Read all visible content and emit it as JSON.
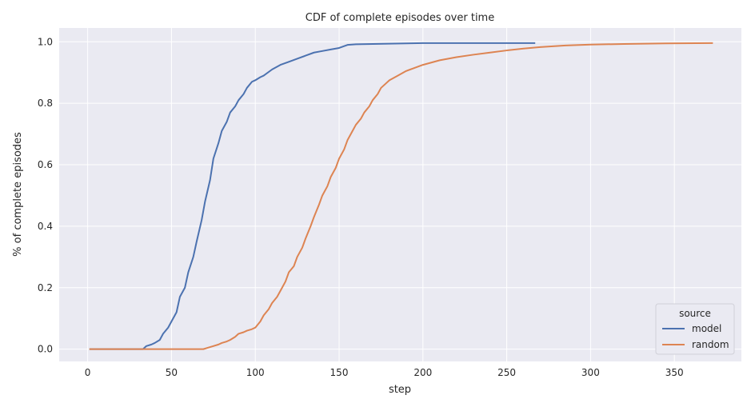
{
  "chart_data": {
    "type": "line",
    "title": "CDF of complete episodes over time",
    "xlabel": "step",
    "ylabel": "% of complete episodes",
    "xlim": [
      -17,
      390
    ],
    "ylim": [
      -0.04,
      1.045
    ],
    "xticks": [
      0,
      50,
      100,
      150,
      200,
      250,
      300,
      350
    ],
    "yticks": [
      0.0,
      0.2,
      0.4,
      0.6,
      0.8,
      1.0
    ],
    "grid": true,
    "legend": {
      "title": "source",
      "placement": "bottom-right"
    },
    "colors": {
      "background": "#eaeaf2",
      "grid": "#ffffff",
      "model": "#4c72b0",
      "random": "#dd8452"
    },
    "series": [
      {
        "name": "model",
        "color": "#4c72b0",
        "x": [
          1,
          33,
          35,
          38,
          40,
          43,
          45,
          48,
          50,
          53,
          55,
          58,
          60,
          63,
          65,
          68,
          70,
          73,
          75,
          78,
          80,
          83,
          85,
          88,
          90,
          93,
          95,
          98,
          100,
          103,
          105,
          110,
          115,
          120,
          125,
          130,
          135,
          140,
          145,
          150,
          155,
          160,
          170,
          180,
          190,
          200,
          220,
          240,
          267
        ],
        "y": [
          0.0,
          0.0,
          0.01,
          0.015,
          0.02,
          0.03,
          0.05,
          0.07,
          0.09,
          0.12,
          0.17,
          0.2,
          0.25,
          0.3,
          0.35,
          0.42,
          0.48,
          0.55,
          0.62,
          0.67,
          0.71,
          0.74,
          0.77,
          0.79,
          0.81,
          0.83,
          0.85,
          0.87,
          0.875,
          0.885,
          0.89,
          0.91,
          0.925,
          0.935,
          0.945,
          0.955,
          0.965,
          0.97,
          0.975,
          0.98,
          0.99,
          0.992,
          0.993,
          0.994,
          0.995,
          0.996,
          0.996,
          0.996,
          0.996
        ]
      },
      {
        "name": "random",
        "color": "#dd8452",
        "x": [
          1,
          69,
          72,
          75,
          78,
          80,
          83,
          85,
          88,
          90,
          93,
          95,
          98,
          100,
          103,
          105,
          108,
          110,
          113,
          115,
          118,
          120,
          123,
          125,
          128,
          130,
          133,
          135,
          138,
          140,
          143,
          145,
          148,
          150,
          153,
          155,
          158,
          160,
          163,
          165,
          168,
          170,
          173,
          175,
          178,
          180,
          185,
          190,
          195,
          200,
          210,
          220,
          230,
          240,
          250,
          260,
          270,
          285,
          300,
          320,
          345,
          373
        ],
        "y": [
          0.0,
          0.0,
          0.005,
          0.01,
          0.015,
          0.02,
          0.025,
          0.03,
          0.04,
          0.05,
          0.055,
          0.06,
          0.065,
          0.07,
          0.09,
          0.11,
          0.13,
          0.15,
          0.17,
          0.19,
          0.22,
          0.25,
          0.27,
          0.3,
          0.33,
          0.36,
          0.4,
          0.43,
          0.47,
          0.5,
          0.53,
          0.56,
          0.59,
          0.62,
          0.65,
          0.68,
          0.71,
          0.73,
          0.75,
          0.77,
          0.79,
          0.81,
          0.83,
          0.85,
          0.865,
          0.875,
          0.89,
          0.905,
          0.915,
          0.925,
          0.94,
          0.95,
          0.958,
          0.965,
          0.972,
          0.978,
          0.983,
          0.988,
          0.991,
          0.993,
          0.995,
          0.996
        ]
      }
    ]
  }
}
